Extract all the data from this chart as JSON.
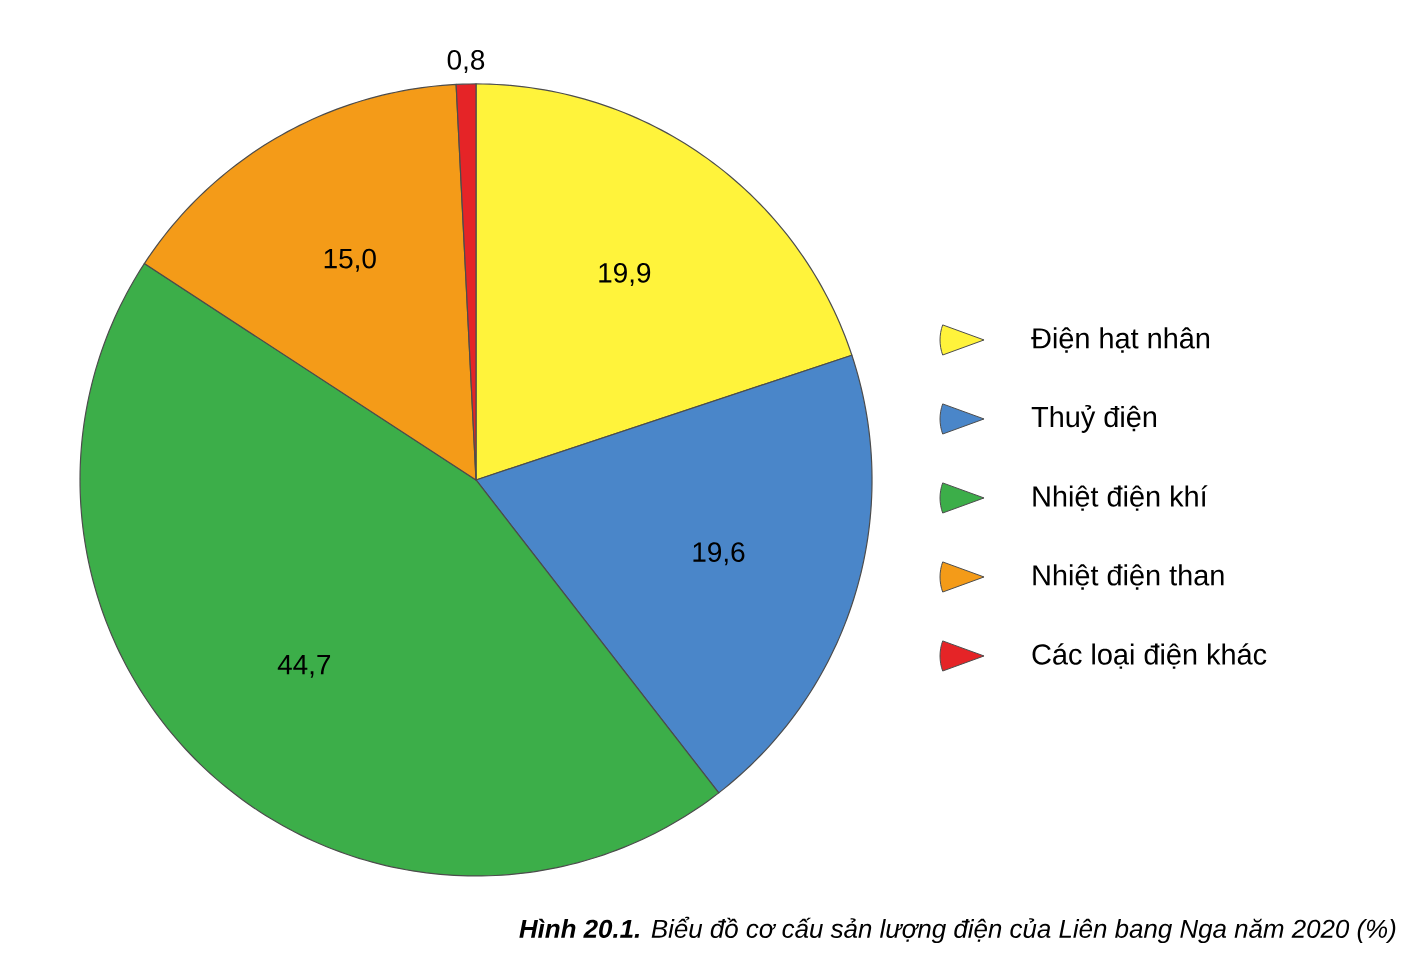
{
  "chart_data": {
    "type": "pie",
    "title": "**Hình 20.1.** Biểu đồ cơ cấu sản lượng điện của Liên bang Nga năm 2020 (%)",
    "categories": [
      "Điện hạt nhân",
      "Thuỷ điện",
      "Nhiệt điện khí",
      "Nhiệt điện than",
      "Các loại điện khác"
    ],
    "values": [
      19.9,
      19.6,
      44.7,
      15.0,
      0.8
    ],
    "value_labels": [
      "19,9",
      "19,6",
      "44,7",
      "15,0",
      "0,8"
    ],
    "colors": [
      "#fff33b",
      "#4a86c9",
      "#3cae49",
      "#f49b18",
      "#e52427"
    ],
    "legend": "right"
  }
}
